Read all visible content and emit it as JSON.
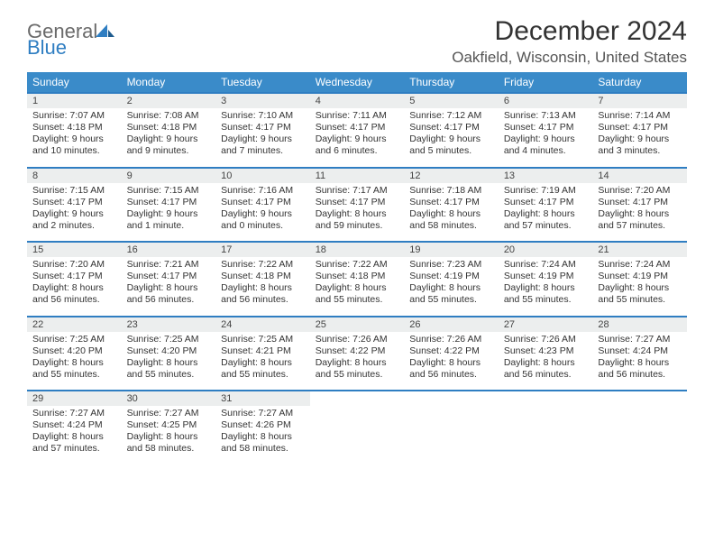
{
  "logo": {
    "general": "General",
    "blue": "Blue"
  },
  "title": "December 2024",
  "location": "Oakfield, Wisconsin, United States",
  "colors": {
    "header_bg": "#3a8bc9",
    "rule": "#2f7ec2",
    "daynum_bg": "#eceeee",
    "logo_gray": "#6a6a6a",
    "logo_blue": "#2f7ec2"
  },
  "day_headers": [
    "Sunday",
    "Monday",
    "Tuesday",
    "Wednesday",
    "Thursday",
    "Friday",
    "Saturday"
  ],
  "weeks": [
    [
      {
        "n": "1",
        "sr": "7:07 AM",
        "ss": "4:18 PM",
        "dl": "9 hours and 10 minutes."
      },
      {
        "n": "2",
        "sr": "7:08 AM",
        "ss": "4:18 PM",
        "dl": "9 hours and 9 minutes."
      },
      {
        "n": "3",
        "sr": "7:10 AM",
        "ss": "4:17 PM",
        "dl": "9 hours and 7 minutes."
      },
      {
        "n": "4",
        "sr": "7:11 AM",
        "ss": "4:17 PM",
        "dl": "9 hours and 6 minutes."
      },
      {
        "n": "5",
        "sr": "7:12 AM",
        "ss": "4:17 PM",
        "dl": "9 hours and 5 minutes."
      },
      {
        "n": "6",
        "sr": "7:13 AM",
        "ss": "4:17 PM",
        "dl": "9 hours and 4 minutes."
      },
      {
        "n": "7",
        "sr": "7:14 AM",
        "ss": "4:17 PM",
        "dl": "9 hours and 3 minutes."
      }
    ],
    [
      {
        "n": "8",
        "sr": "7:15 AM",
        "ss": "4:17 PM",
        "dl": "9 hours and 2 minutes."
      },
      {
        "n": "9",
        "sr": "7:15 AM",
        "ss": "4:17 PM",
        "dl": "9 hours and 1 minute."
      },
      {
        "n": "10",
        "sr": "7:16 AM",
        "ss": "4:17 PM",
        "dl": "9 hours and 0 minutes."
      },
      {
        "n": "11",
        "sr": "7:17 AM",
        "ss": "4:17 PM",
        "dl": "8 hours and 59 minutes."
      },
      {
        "n": "12",
        "sr": "7:18 AM",
        "ss": "4:17 PM",
        "dl": "8 hours and 58 minutes."
      },
      {
        "n": "13",
        "sr": "7:19 AM",
        "ss": "4:17 PM",
        "dl": "8 hours and 57 minutes."
      },
      {
        "n": "14",
        "sr": "7:20 AM",
        "ss": "4:17 PM",
        "dl": "8 hours and 57 minutes."
      }
    ],
    [
      {
        "n": "15",
        "sr": "7:20 AM",
        "ss": "4:17 PM",
        "dl": "8 hours and 56 minutes."
      },
      {
        "n": "16",
        "sr": "7:21 AM",
        "ss": "4:17 PM",
        "dl": "8 hours and 56 minutes."
      },
      {
        "n": "17",
        "sr": "7:22 AM",
        "ss": "4:18 PM",
        "dl": "8 hours and 56 minutes."
      },
      {
        "n": "18",
        "sr": "7:22 AM",
        "ss": "4:18 PM",
        "dl": "8 hours and 55 minutes."
      },
      {
        "n": "19",
        "sr": "7:23 AM",
        "ss": "4:19 PM",
        "dl": "8 hours and 55 minutes."
      },
      {
        "n": "20",
        "sr": "7:24 AM",
        "ss": "4:19 PM",
        "dl": "8 hours and 55 minutes."
      },
      {
        "n": "21",
        "sr": "7:24 AM",
        "ss": "4:19 PM",
        "dl": "8 hours and 55 minutes."
      }
    ],
    [
      {
        "n": "22",
        "sr": "7:25 AM",
        "ss": "4:20 PM",
        "dl": "8 hours and 55 minutes."
      },
      {
        "n": "23",
        "sr": "7:25 AM",
        "ss": "4:20 PM",
        "dl": "8 hours and 55 minutes."
      },
      {
        "n": "24",
        "sr": "7:25 AM",
        "ss": "4:21 PM",
        "dl": "8 hours and 55 minutes."
      },
      {
        "n": "25",
        "sr": "7:26 AM",
        "ss": "4:22 PM",
        "dl": "8 hours and 55 minutes."
      },
      {
        "n": "26",
        "sr": "7:26 AM",
        "ss": "4:22 PM",
        "dl": "8 hours and 56 minutes."
      },
      {
        "n": "27",
        "sr": "7:26 AM",
        "ss": "4:23 PM",
        "dl": "8 hours and 56 minutes."
      },
      {
        "n": "28",
        "sr": "7:27 AM",
        "ss": "4:24 PM",
        "dl": "8 hours and 56 minutes."
      }
    ],
    [
      {
        "n": "29",
        "sr": "7:27 AM",
        "ss": "4:24 PM",
        "dl": "8 hours and 57 minutes."
      },
      {
        "n": "30",
        "sr": "7:27 AM",
        "ss": "4:25 PM",
        "dl": "8 hours and 58 minutes."
      },
      {
        "n": "31",
        "sr": "7:27 AM",
        "ss": "4:26 PM",
        "dl": "8 hours and 58 minutes."
      },
      {
        "empty": true
      },
      {
        "empty": true
      },
      {
        "empty": true
      },
      {
        "empty": true
      }
    ]
  ],
  "labels": {
    "sunrise": "Sunrise: ",
    "sunset": "Sunset: ",
    "daylight": "Daylight: "
  }
}
